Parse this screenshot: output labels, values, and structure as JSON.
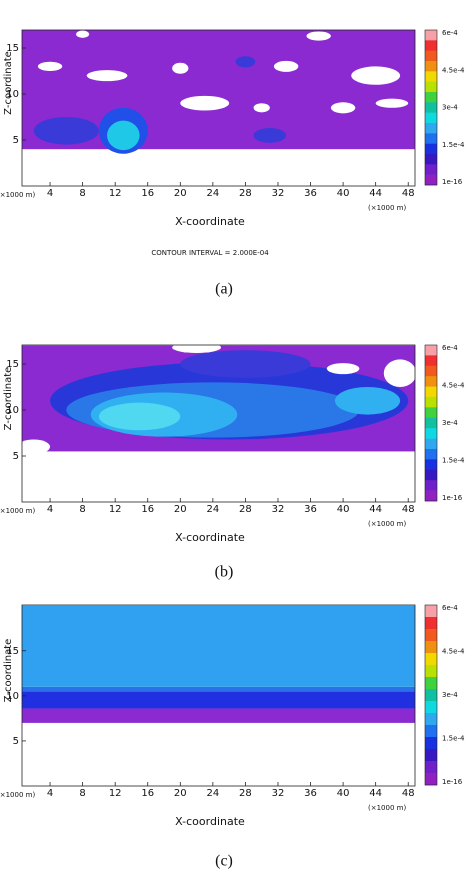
{
  "panels": [
    {
      "y_label": "Z-coordinate",
      "x_label": "X-coordinate",
      "x_unit_left": "(×1000 m)",
      "x_unit_right": "(×1000 m)",
      "x_ticks": [
        4,
        8,
        12,
        16,
        20,
        24,
        28,
        32,
        36,
        40,
        44,
        48
      ],
      "y_ticks": [
        5,
        10,
        15
      ],
      "colorbar_ticks": [
        "6e-4",
        "4.5e-4",
        "3e-4",
        "1.5e-4",
        "1e-16"
      ],
      "note": "CONTOUR INTERVAL = 2.000E-04",
      "caption": "(a)"
    },
    {
      "y_label": "Z-coordinate",
      "x_label": "X-coordinate",
      "x_unit_left": "(×1000 m)",
      "x_unit_right": "(×1000 m)",
      "x_ticks": [
        4,
        8,
        12,
        16,
        20,
        24,
        28,
        32,
        36,
        40,
        44,
        48
      ],
      "y_ticks": [
        5,
        10,
        15
      ],
      "colorbar_ticks": [
        "6e-4",
        "4.5e-4",
        "3e-4",
        "1.5e-4",
        "1e-16"
      ],
      "caption": "(b)"
    },
    {
      "y_label": "Z-coordinate",
      "x_label": "X-coordinate",
      "x_unit_left": "(×1000 m)",
      "x_unit_right": "(×1000 m)",
      "x_ticks": [
        4,
        8,
        12,
        16,
        20,
        24,
        28,
        32,
        36,
        40,
        44,
        48
      ],
      "y_ticks": [
        5,
        10,
        15
      ],
      "colorbar_ticks": [
        "6e-4",
        "4.5e-4",
        "3e-4",
        "1.5e-4",
        "1e-16"
      ],
      "caption": "(c)"
    }
  ]
}
